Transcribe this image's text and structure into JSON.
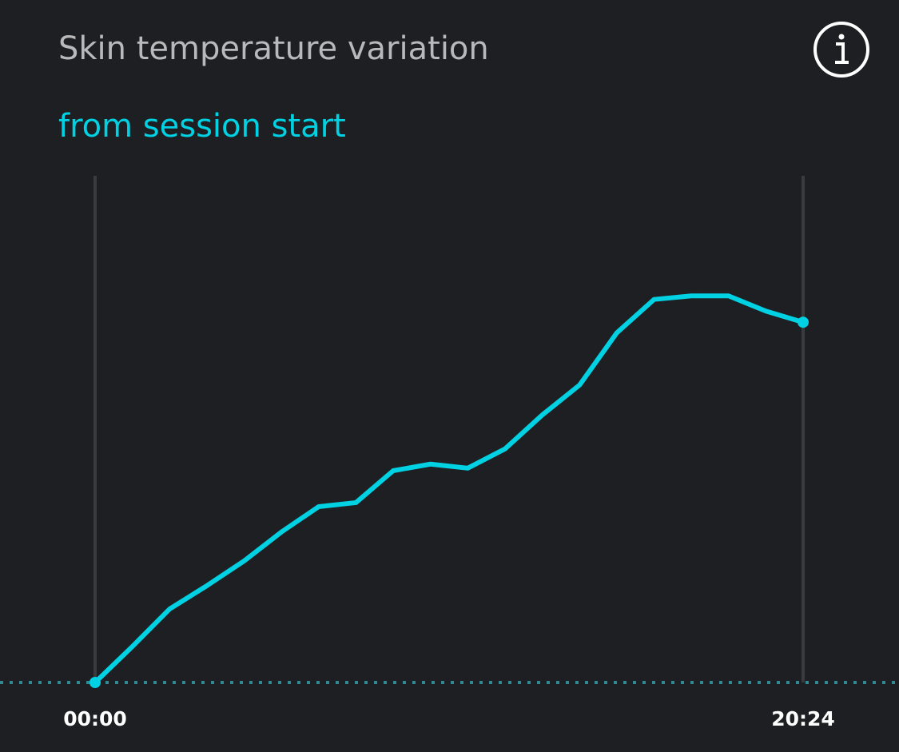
{
  "chart_data": {
    "type": "line",
    "title": "Skin temperature variation",
    "subtitle": "from session start",
    "categories": [
      "00:00",
      null,
      null,
      null,
      null,
      null,
      null,
      null,
      null,
      null,
      null,
      null,
      null,
      null,
      null,
      null,
      null,
      null,
      null,
      "20:24"
    ],
    "series": [
      {
        "color": "#00d2e3",
        "values": [
          0,
          7.1,
          14.5,
          19.1,
          24,
          29.7,
          34.7,
          35.5,
          41.8,
          43.1,
          42.3,
          46.1,
          52.8,
          58.7,
          69,
          75.6,
          76.3,
          76.3,
          73.3,
          71.1
        ]
      }
    ],
    "ylim": [
      0,
      100
    ]
  }
}
